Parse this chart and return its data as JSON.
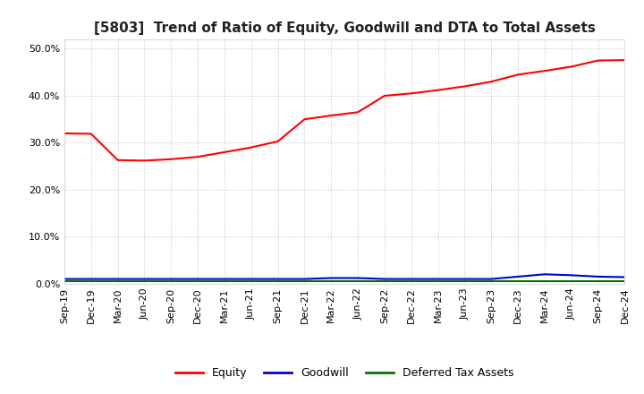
{
  "title": "[5803]  Trend of Ratio of Equity, Goodwill and DTA to Total Assets",
  "title_fontsize": 11,
  "ylim": [
    0.0,
    0.52
  ],
  "yticks": [
    0.0,
    0.1,
    0.2,
    0.3,
    0.4,
    0.5
  ],
  "background_color": "#ffffff",
  "plot_bg_color": "#ffffff",
  "grid_color": "#aaaaaa",
  "legend_items": [
    "Equity",
    "Goodwill",
    "Deferred Tax Assets"
  ],
  "legend_colors": [
    "#ff0000",
    "#0000cc",
    "#007700"
  ],
  "x_labels": [
    "Sep-19",
    "Dec-19",
    "Mar-20",
    "Jun-20",
    "Sep-20",
    "Dec-20",
    "Mar-21",
    "Jun-21",
    "Sep-21",
    "Dec-21",
    "Mar-22",
    "Jun-22",
    "Sep-22",
    "Dec-22",
    "Mar-23",
    "Jun-23",
    "Sep-23",
    "Dec-23",
    "Mar-24",
    "Jun-24",
    "Sep-24",
    "Dec-24"
  ],
  "equity": [
    0.32,
    0.319,
    0.263,
    0.262,
    0.265,
    0.27,
    0.28,
    0.29,
    0.303,
    0.35,
    0.358,
    0.365,
    0.4,
    0.405,
    0.412,
    0.42,
    0.43,
    0.445,
    0.453,
    0.462,
    0.475,
    0.476
  ],
  "goodwill": [
    0.01,
    0.01,
    0.01,
    0.01,
    0.01,
    0.01,
    0.01,
    0.01,
    0.01,
    0.01,
    0.012,
    0.012,
    0.01,
    0.01,
    0.01,
    0.01,
    0.01,
    0.015,
    0.02,
    0.018,
    0.015,
    0.014
  ],
  "dta": [
    0.005,
    0.005,
    0.005,
    0.005,
    0.005,
    0.005,
    0.005,
    0.005,
    0.005,
    0.005,
    0.005,
    0.005,
    0.005,
    0.005,
    0.005,
    0.005,
    0.005,
    0.005,
    0.005,
    0.005,
    0.005,
    0.005
  ]
}
